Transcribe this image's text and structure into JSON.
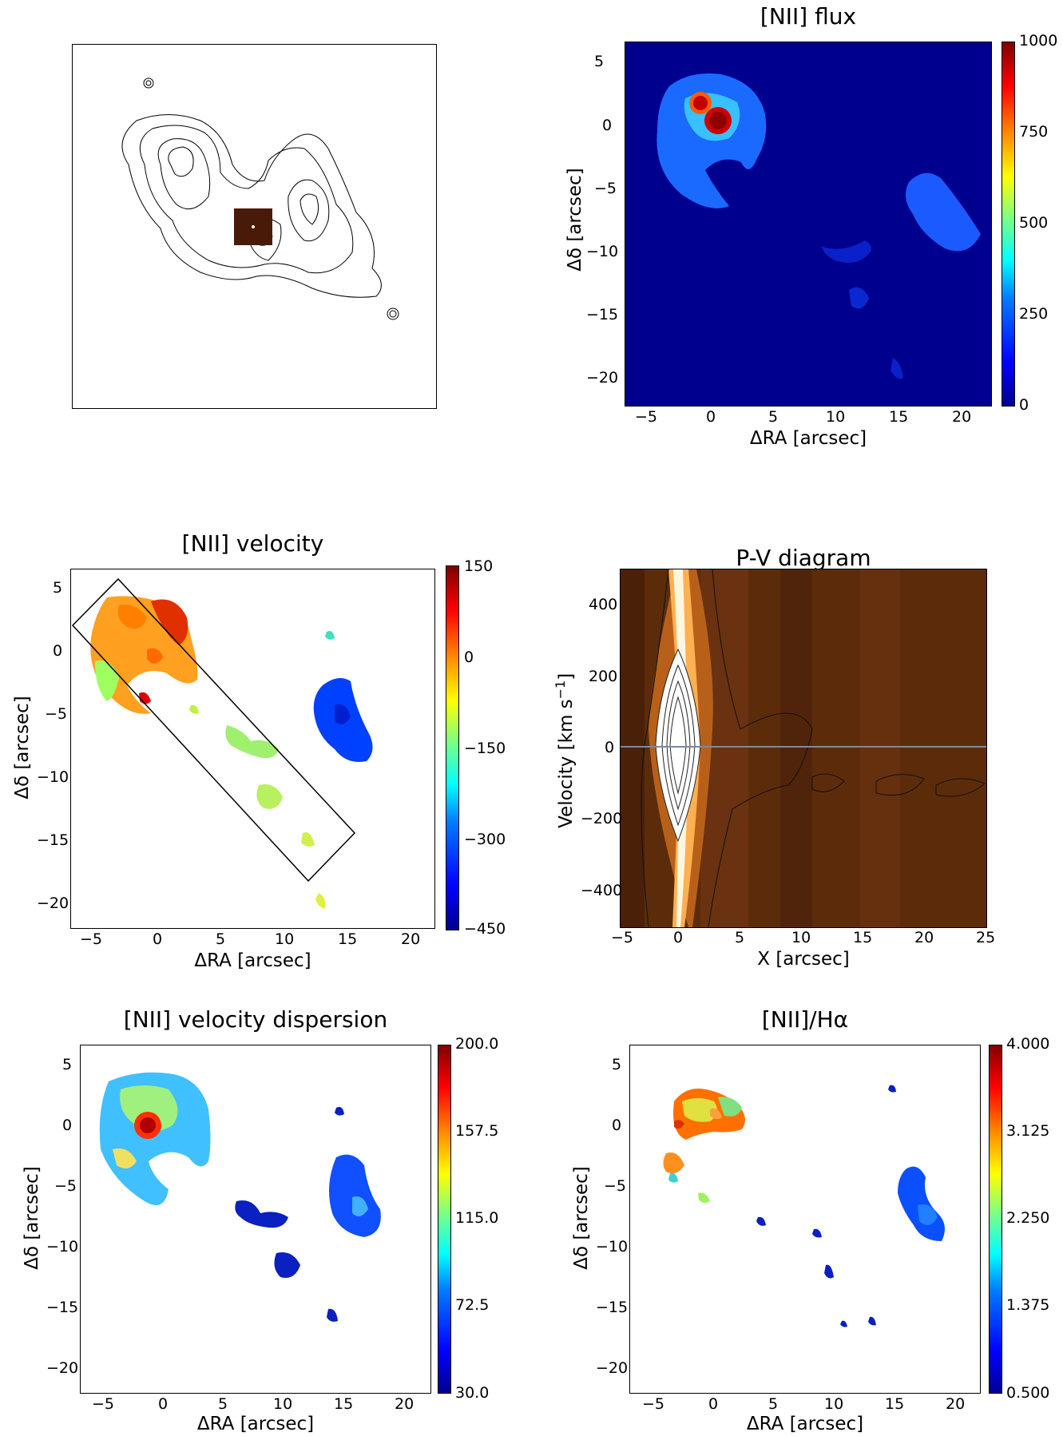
{
  "panels": {
    "overview": {},
    "flux": {
      "title": "[NII] flux",
      "xticks": [
        "−5",
        "0",
        "5",
        "10",
        "15",
        "20"
      ],
      "yticks": [
        "5",
        "0",
        "−5",
        "−10",
        "−15",
        "−20"
      ],
      "xlabel": "ΔRA [arcsec]",
      "ylabel": "Δδ [arcsec]",
      "colorbar_ticks": [
        "1000",
        "750",
        "500",
        "250",
        "0"
      ]
    },
    "velocity": {
      "title": "[NII] velocity",
      "xticks": [
        "−5",
        "0",
        "5",
        "10",
        "15",
        "20"
      ],
      "yticks": [
        "5",
        "0",
        "−5",
        "−10",
        "−15",
        "−20"
      ],
      "xlabel": "ΔRA [arcsec]",
      "ylabel": "Δδ [arcsec]",
      "colorbar_ticks": [
        "150",
        "0",
        "−150",
        "−300",
        "−450"
      ]
    },
    "pv": {
      "title": "P-V diagram",
      "xticks": [
        "−5",
        "0",
        "5",
        "10",
        "15",
        "20",
        "25"
      ],
      "yticks": [
        "400",
        "200",
        "0",
        "−200",
        "−400"
      ],
      "xlabel": "X [arcsec]",
      "ylabel": "Velocity [km s",
      "ylabel_sup": "−1",
      "ylabel_end": "]"
    },
    "dispersion": {
      "title": "[NII] velocity dispersion",
      "xticks": [
        "−5",
        "0",
        "5",
        "10",
        "15",
        "20"
      ],
      "yticks": [
        "5",
        "0",
        "−5",
        "−10",
        "−15",
        "−20"
      ],
      "xlabel": "ΔRA [arcsec]",
      "ylabel": "Δδ [arcsec]",
      "colorbar_ticks": [
        "200.0",
        "157.5",
        "115.0",
        "72.5",
        "30.0"
      ]
    },
    "ratio": {
      "title": "[NII]/Hα",
      "xticks": [
        "−5",
        "0",
        "5",
        "10",
        "15",
        "20"
      ],
      "yticks": [
        "5",
        "0",
        "−5",
        "−10",
        "−15",
        "−20"
      ],
      "xlabel": "ΔRA [arcsec]",
      "ylabel": "Δδ [arcsec]",
      "colorbar_ticks": [
        "4.000",
        "3.125",
        "2.250",
        "1.375",
        "0.500"
      ]
    }
  },
  "colors": {
    "flux_background": "#00008f",
    "pv_background": "#5a2a08"
  }
}
